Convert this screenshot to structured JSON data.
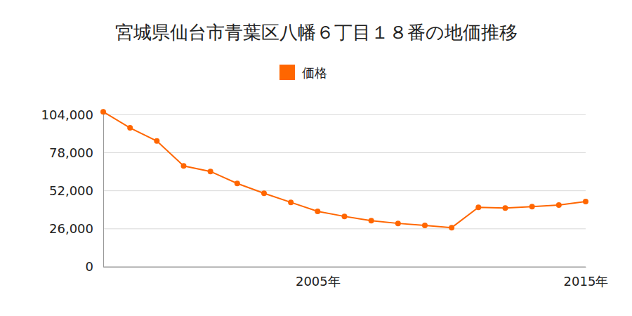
{
  "chart_data": {
    "type": "line",
    "title": "宮城県仙台市青葉区八幡６丁目１８番の地価推移",
    "x": [
      1997,
      1998,
      1999,
      2000,
      2001,
      2002,
      2003,
      2004,
      2005,
      2006,
      2007,
      2008,
      2009,
      2010,
      2011,
      2012,
      2013,
      2014,
      2015
    ],
    "series": [
      {
        "name": "価格",
        "color": "#ff6600",
        "marker": "circle",
        "values": [
          106000,
          95000,
          86000,
          69000,
          65200,
          57000,
          50300,
          44100,
          37900,
          34500,
          31600,
          29700,
          28300,
          26800,
          40700,
          40200,
          41200,
          42200,
          44600
        ]
      }
    ],
    "xlim": [
      1997,
      2015
    ],
    "xticks": [
      {
        "value": 2005,
        "label": "2005年"
      },
      {
        "value": 2015,
        "label": "2015年"
      }
    ],
    "ylim": [
      0,
      108000
    ],
    "yticks": [
      0,
      {
        "value": 26000,
        "label": "26,000"
      },
      {
        "value": 52000,
        "label": "52,000"
      },
      {
        "value": 78000,
        "label": "78,000"
      },
      {
        "value": 104000,
        "label": "104,000"
      }
    ],
    "grid": true,
    "legend": "top"
  }
}
